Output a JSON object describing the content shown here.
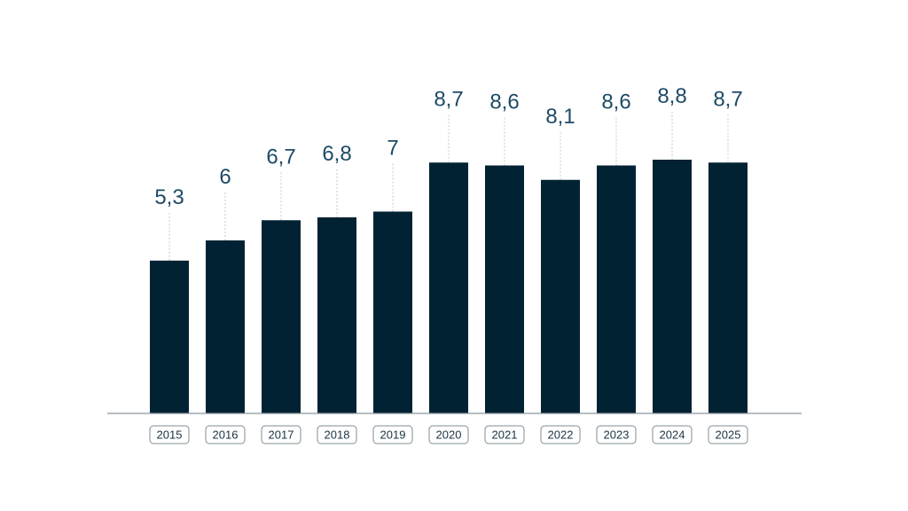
{
  "chart_data": {
    "type": "bar",
    "categories": [
      "2015",
      "2016",
      "2017",
      "2018",
      "2019",
      "2020",
      "2021",
      "2022",
      "2023",
      "2024",
      "2025"
    ],
    "values": [
      5.3,
      6,
      6.7,
      6.8,
      7,
      8.7,
      8.6,
      8.1,
      8.6,
      8.8,
      8.7
    ],
    "value_labels": [
      "5,3",
      "6",
      "6,7",
      "6,8",
      "7",
      "8,7",
      "8,6",
      "8,1",
      "8,6",
      "8,8",
      "8,7"
    ],
    "title": "",
    "xlabel": "",
    "ylabel": "",
    "ylim": [
      0,
      8.8
    ],
    "grid": false,
    "legend": "none",
    "colors": {
      "bar": "#002233",
      "value_label": "#1e4a66",
      "leader_line": "#c4c9cd",
      "axis": "#8a969f",
      "tick_border": "#7f8c95",
      "tick_text": "#1a3344"
    }
  }
}
